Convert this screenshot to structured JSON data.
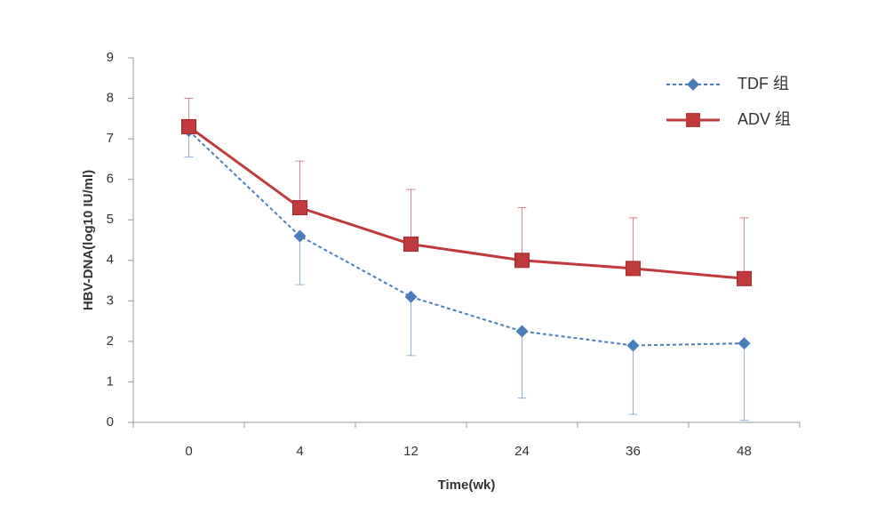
{
  "chart_data": {
    "type": "line",
    "x_label": "Time(wk)",
    "y_label": "HBV-DNA(log10 IU/ml)",
    "categories": [
      "0",
      "4",
      "12",
      "24",
      "36",
      "48"
    ],
    "ylim": [
      0,
      9
    ],
    "yticks": [
      0,
      1,
      2,
      3,
      4,
      5,
      6,
      7,
      8,
      9
    ],
    "legend": "top-right",
    "series": [
      {
        "name": "TDF 组",
        "color": "#4a7ebb",
        "marker": "diamond",
        "dashed": true,
        "error_side": "down",
        "values": [
          7.2,
          4.6,
          3.1,
          2.25,
          1.9,
          1.95
        ],
        "errors": [
          0.65,
          1.2,
          1.45,
          1.65,
          1.7,
          1.9
        ]
      },
      {
        "name": "ADV 组",
        "color": "#c0393b",
        "marker": "square",
        "dashed": false,
        "error_side": "up",
        "values": [
          7.3,
          5.3,
          4.4,
          4.0,
          3.8,
          3.55
        ],
        "errors": [
          0.7,
          1.15,
          1.35,
          1.3,
          1.25,
          1.5
        ]
      }
    ]
  }
}
